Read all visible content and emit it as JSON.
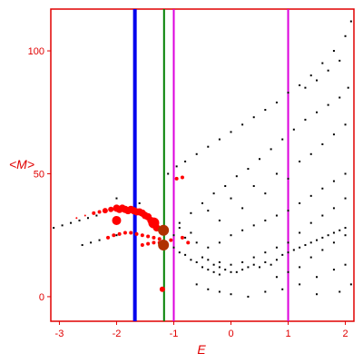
{
  "chart_data": {
    "type": "scatter",
    "xlabel": "E",
    "ylabel": "<M>",
    "xlim": [
      -3.15,
      2.15
    ],
    "ylim": [
      -10,
      117
    ],
    "x_ticks": [
      -3,
      -2,
      -1,
      0,
      1,
      2
    ],
    "y_ticks": [
      0,
      50,
      100
    ],
    "grid": false,
    "vertical_lines": [
      {
        "x": -1.68,
        "color": "#0000ee",
        "width": 4
      },
      {
        "x": -1.17,
        "color": "#008000",
        "width": 2
      },
      {
        "x": -1.0,
        "color": "#dd00dd",
        "width": 2
      },
      {
        "x": 1.0,
        "color": "#dd00dd",
        "width": 2
      }
    ],
    "colors": {
      "axis": "#e00000",
      "small_points": "#000000",
      "red_points": "#ff0000",
      "highlight": "#b03000"
    },
    "series": [
      {
        "color": "#000000",
        "points": [
          [
            -3.1,
            28
          ],
          [
            -2.95,
            29
          ],
          [
            -2.8,
            30
          ],
          [
            -2.65,
            31
          ],
          [
            -2.5,
            32
          ],
          [
            -2.35,
            33
          ],
          [
            -2.6,
            21
          ],
          [
            -2.45,
            22
          ],
          [
            -2.3,
            23
          ],
          [
            -2.15,
            24
          ],
          [
            -2.0,
            25
          ],
          [
            -2.0,
            40
          ],
          [
            -1.6,
            38
          ],
          [
            -1.1,
            50
          ],
          [
            -0.95,
            53
          ],
          [
            -0.8,
            55
          ],
          [
            -0.6,
            58
          ],
          [
            -0.4,
            61
          ],
          [
            -0.2,
            64
          ],
          [
            0,
            67
          ],
          [
            0.2,
            70
          ],
          [
            0.4,
            73
          ],
          [
            0.6,
            76
          ],
          [
            0.8,
            79
          ],
          [
            1.0,
            83
          ],
          [
            1.2,
            86
          ],
          [
            1.4,
            90
          ],
          [
            1.6,
            95
          ],
          [
            1.8,
            100
          ],
          [
            2.0,
            106
          ],
          [
            2.1,
            112
          ],
          [
            -0.9,
            30
          ],
          [
            -0.7,
            34
          ],
          [
            -0.5,
            38
          ],
          [
            -0.3,
            42
          ],
          [
            -0.1,
            45
          ],
          [
            0.1,
            49
          ],
          [
            0.3,
            52
          ],
          [
            0.5,
            56
          ],
          [
            0.7,
            60
          ],
          [
            0.9,
            64
          ],
          [
            1.1,
            68
          ],
          [
            1.3,
            72
          ],
          [
            1.5,
            75
          ],
          [
            1.7,
            78
          ],
          [
            1.9,
            81
          ],
          [
            2.05,
            85
          ],
          [
            -0.4,
            20
          ],
          [
            -0.2,
            22
          ],
          [
            0,
            25
          ],
          [
            0.2,
            27
          ],
          [
            0.4,
            29
          ],
          [
            0.6,
            31
          ],
          [
            0.8,
            33
          ],
          [
            1.0,
            35
          ],
          [
            1.2,
            38
          ],
          [
            1.4,
            41
          ],
          [
            1.6,
            44
          ],
          [
            1.8,
            47
          ],
          [
            2.0,
            50
          ],
          [
            -0.3,
            13
          ],
          [
            -0.2,
            12
          ],
          [
            -0.1,
            11
          ],
          [
            0,
            10
          ],
          [
            0.1,
            10
          ],
          [
            0.2,
            11
          ],
          [
            0.3,
            12
          ],
          [
            0.4,
            13
          ],
          [
            0.5,
            12
          ],
          [
            0.6,
            14
          ],
          [
            0.7,
            13
          ],
          [
            0.8,
            15
          ],
          [
            0.9,
            17
          ],
          [
            1.0,
            18
          ],
          [
            1.1,
            19
          ],
          [
            1.2,
            20
          ],
          [
            1.3,
            21
          ],
          [
            1.4,
            22
          ],
          [
            1.5,
            23
          ],
          [
            1.6,
            24
          ],
          [
            1.7,
            25
          ],
          [
            1.8,
            26
          ],
          [
            1.9,
            27
          ],
          [
            2.0,
            28
          ],
          [
            -0.5,
            16
          ],
          [
            -0.4,
            15
          ],
          [
            -0.2,
            14
          ],
          [
            0.0,
            13
          ],
          [
            0.2,
            14
          ],
          [
            0.4,
            16
          ],
          [
            0.6,
            18
          ],
          [
            0.8,
            20
          ],
          [
            1.0,
            22
          ],
          [
            1.2,
            26
          ],
          [
            1.4,
            30
          ],
          [
            1.6,
            33
          ],
          [
            1.8,
            36
          ],
          [
            2.0,
            40
          ],
          [
            -1.0,
            20
          ],
          [
            -0.9,
            18
          ],
          [
            -0.8,
            17
          ],
          [
            -0.7,
            15
          ],
          [
            -0.6,
            14
          ],
          [
            -0.5,
            12
          ],
          [
            -0.4,
            11
          ],
          [
            -0.3,
            10
          ],
          [
            -0.2,
            9
          ],
          [
            -0.6,
            5
          ],
          [
            -0.4,
            3
          ],
          [
            -0.2,
            2
          ],
          [
            0.0,
            1
          ],
          [
            0.3,
            0
          ],
          [
            0.6,
            2
          ],
          [
            0.9,
            3
          ],
          [
            1.2,
            5
          ],
          [
            1.5,
            8
          ],
          [
            1.8,
            11
          ],
          [
            2.0,
            13
          ],
          [
            -1.0,
            25
          ],
          [
            -0.9,
            28
          ],
          [
            -0.8,
            24
          ],
          [
            -0.7,
            26
          ],
          [
            -0.6,
            22
          ],
          [
            -0.4,
            35
          ],
          [
            -0.2,
            31
          ],
          [
            0,
            40
          ],
          [
            0.2,
            36
          ],
          [
            0.4,
            45
          ],
          [
            0.6,
            42
          ],
          [
            0.8,
            50
          ],
          [
            1.0,
            48
          ],
          [
            1.2,
            55
          ],
          [
            1.4,
            58
          ],
          [
            1.6,
            62
          ],
          [
            1.8,
            66
          ],
          [
            2.0,
            70
          ],
          [
            1.3,
            85
          ],
          [
            1.5,
            88
          ],
          [
            1.7,
            92
          ],
          [
            1.9,
            96
          ],
          [
            0.8,
            8
          ],
          [
            1.0,
            10
          ],
          [
            1.2,
            12
          ],
          [
            1.4,
            16
          ],
          [
            1.6,
            19
          ],
          [
            1.8,
            22
          ],
          [
            2.0,
            25
          ],
          [
            2.1,
            5
          ],
          [
            1.9,
            2
          ],
          [
            1.5,
            1
          ]
        ]
      },
      {
        "color": "#ff0000",
        "points": [
          [
            -2.7,
            32,
            1
          ],
          [
            -2.55,
            33,
            1
          ],
          [
            -2.4,
            34,
            2
          ],
          [
            -2.3,
            34.5,
            2
          ],
          [
            -2.2,
            35,
            3
          ],
          [
            -2.1,
            35.5,
            3
          ],
          [
            -2.0,
            36,
            4
          ],
          [
            -1.95,
            35.5,
            4
          ],
          [
            -1.9,
            36,
            4
          ],
          [
            -1.85,
            35.5,
            4
          ],
          [
            -1.8,
            35,
            4
          ],
          [
            -1.75,
            35.5,
            4
          ],
          [
            -1.7,
            35,
            4
          ],
          [
            -1.65,
            34.5,
            4
          ],
          [
            -1.6,
            34.5,
            4
          ],
          [
            -1.55,
            34,
            4
          ],
          [
            -1.5,
            33,
            4
          ],
          [
            -1.45,
            32.5,
            4
          ],
          [
            -1.4,
            31,
            4
          ],
          [
            -1.35,
            29.5,
            4
          ],
          [
            -1.3,
            28,
            4
          ],
          [
            -2.0,
            31,
            5
          ],
          [
            -1.35,
            30,
            6
          ],
          [
            -2.15,
            24,
            2
          ],
          [
            -2.05,
            25,
            2
          ],
          [
            -1.95,
            25.5,
            2
          ],
          [
            -1.85,
            26,
            2
          ],
          [
            -1.75,
            26,
            2
          ],
          [
            -1.65,
            25.5,
            2
          ],
          [
            -1.55,
            25,
            2
          ],
          [
            -1.45,
            24.5,
            2
          ],
          [
            -1.35,
            24,
            2
          ],
          [
            -1.25,
            23.5,
            2
          ],
          [
            -1.55,
            21,
            2
          ],
          [
            -1.45,
            21.5,
            2
          ],
          [
            -1.35,
            22,
            2
          ],
          [
            -1.25,
            22,
            2
          ],
          [
            -1.05,
            23,
            2
          ],
          [
            -0.85,
            24,
            2
          ],
          [
            -0.75,
            22,
            2
          ],
          [
            -0.95,
            48,
            2
          ],
          [
            -0.85,
            48.5,
            2
          ],
          [
            -1.2,
            3,
            3
          ]
        ]
      },
      {
        "color": "#b03000",
        "points": [
          [
            -1.18,
            27,
            6
          ],
          [
            -1.18,
            21,
            6
          ]
        ]
      }
    ]
  }
}
